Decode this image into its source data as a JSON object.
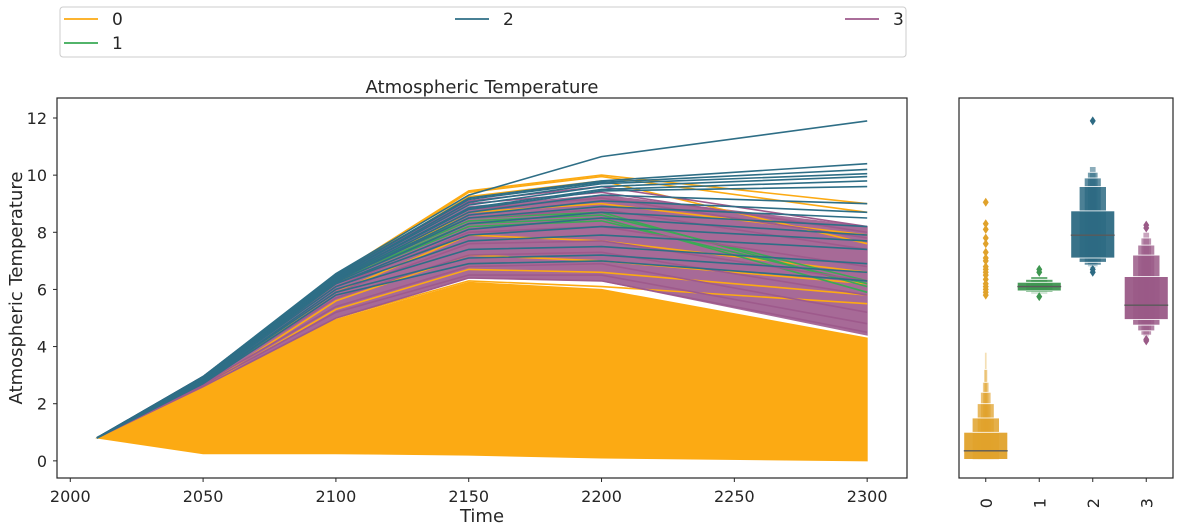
{
  "legend": {
    "placement": "top, above plots",
    "entries": [
      {
        "label": "0",
        "color": "#fcaa13"
      },
      {
        "label": "1",
        "color": "#3aaa55"
      },
      {
        "label": "2",
        "color": "#2e6e86"
      },
      {
        "label": "3",
        "color": "#9e5a8c"
      }
    ]
  },
  "chart_data": [
    {
      "type": "line",
      "title": "Atmospheric Temperature",
      "xlabel": "Time",
      "ylabel": "Atmospheric Temperature",
      "xlim": [
        1995,
        2315
      ],
      "ylim": [
        -0.6,
        12.7
      ],
      "xticks": [
        2000,
        2050,
        2100,
        2150,
        2200,
        2250,
        2300
      ],
      "yticks": [
        0,
        2,
        4,
        6,
        8,
        10,
        12
      ],
      "grid": false,
      "x": [
        2010,
        2050,
        2100,
        2150,
        2200,
        2300
      ],
      "series": [
        {
          "name": "0",
          "color": "#fcaa13",
          "bands": [
            {
              "low": [
                0.8,
                0.25,
                0.25,
                0.2,
                0.1,
                0.0
              ],
              "high": [
                0.8,
                2.6,
                4.95,
                6.25,
                6.0,
                4.3
              ]
            }
          ],
          "lines": [
            [
              0.8,
              2.9,
              6.5,
              9.45,
              10.0,
              9.0
            ],
            [
              0.8,
              2.9,
              6.45,
              9.4,
              9.95,
              8.7
            ],
            [
              0.8,
              2.85,
              6.4,
              9.25,
              9.8,
              7.6
            ],
            [
              0.8,
              2.8,
              6.2,
              8.7,
              9.0,
              7.9
            ],
            [
              0.8,
              2.7,
              5.9,
              7.9,
              7.7,
              6.6
            ],
            [
              0.8,
              2.6,
              5.6,
              7.2,
              7.0,
              6.2
            ],
            [
              0.8,
              2.6,
              5.3,
              6.7,
              6.6,
              5.8
            ],
            [
              0.8,
              2.55,
              5.0,
              6.3,
              6.1,
              5.5
            ]
          ]
        },
        {
          "name": "1",
          "color": "#3aaa55",
          "lines": [
            [
              0.8,
              2.9,
              6.45,
              8.5,
              8.7,
              6.1
            ],
            [
              0.8,
              2.85,
              6.4,
              8.4,
              8.6,
              6.3
            ],
            [
              0.8,
              2.85,
              6.35,
              8.3,
              8.5,
              5.9
            ],
            [
              0.8,
              2.8,
              6.3,
              8.2,
              8.4,
              6.2
            ]
          ]
        },
        {
          "name": "2",
          "color": "#2e6e86",
          "lines": [
            [
              0.8,
              2.95,
              6.55,
              9.3,
              10.65,
              11.9
            ],
            [
              0.8,
              2.95,
              6.5,
              9.2,
              9.8,
              10.4
            ],
            [
              0.8,
              2.95,
              6.5,
              9.15,
              9.75,
              10.2
            ],
            [
              0.8,
              2.9,
              6.45,
              9.05,
              9.7,
              10.05
            ],
            [
              0.8,
              2.9,
              6.45,
              8.95,
              9.6,
              9.95
            ],
            [
              0.8,
              2.9,
              6.4,
              8.85,
              9.5,
              9.8
            ],
            [
              0.8,
              2.9,
              6.4,
              8.8,
              9.45,
              9.6
            ],
            [
              0.8,
              2.9,
              6.35,
              8.7,
              9.3,
              9.0
            ],
            [
              0.8,
              2.85,
              6.3,
              8.6,
              9.1,
              8.7
            ],
            [
              0.8,
              2.85,
              6.3,
              8.5,
              8.9,
              8.5
            ],
            [
              0.8,
              2.85,
              6.25,
              8.3,
              8.7,
              8.2
            ],
            [
              0.8,
              2.8,
              6.2,
              8.1,
              8.5,
              7.9
            ],
            [
              0.8,
              2.8,
              6.2,
              7.9,
              8.2,
              7.7
            ],
            [
              0.8,
              2.8,
              6.1,
              7.7,
              7.9,
              7.4
            ],
            [
              0.8,
              2.75,
              6.0,
              7.4,
              7.5,
              6.9
            ],
            [
              0.8,
              2.75,
              5.9,
              7.1,
              7.2,
              6.6
            ],
            [
              0.8,
              2.7,
              5.8,
              6.9,
              7.0,
              6.3
            ]
          ]
        },
        {
          "name": "3",
          "color": "#9e5a8c",
          "bands": [
            {
              "low": [
                0.8,
                2.6,
                5.0,
                6.4,
                6.3,
                4.4
              ],
              "high": [
                0.8,
                2.95,
                6.5,
                8.9,
                9.3,
                8.2
              ]
            }
          ],
          "lines": [
            [
              0.8,
              2.95,
              6.5,
              9.1,
              9.6,
              8.2
            ],
            [
              0.8,
              2.95,
              6.45,
              9.0,
              9.4,
              8.0
            ],
            [
              0.8,
              2.9,
              6.4,
              8.8,
              9.2,
              7.8
            ],
            [
              0.8,
              2.9,
              6.3,
              8.5,
              8.8,
              7.4
            ],
            [
              0.8,
              2.85,
              6.1,
              8.0,
              8.2,
              6.8
            ],
            [
              0.8,
              2.8,
              5.9,
              7.6,
              7.7,
              6.3
            ],
            [
              0.8,
              2.75,
              5.7,
              7.2,
              7.3,
              5.8
            ],
            [
              0.8,
              2.7,
              5.4,
              6.8,
              6.9,
              5.2
            ],
            [
              0.8,
              2.65,
              5.2,
              6.5,
              6.5,
              4.8
            ],
            [
              0.8,
              2.6,
              5.0,
              6.4,
              6.3,
              4.5
            ]
          ]
        }
      ]
    },
    {
      "type": "boxen",
      "categories": [
        "0",
        "1",
        "2",
        "3"
      ],
      "ylim": [
        -0.6,
        12.7
      ],
      "yticks_shown": false,
      "grid": false,
      "series": [
        {
          "category": "0",
          "color": "#e0a22b",
          "median": 0.35,
          "levels": [
            {
              "low": 0.05,
              "high": 1.0
            },
            {
              "low": 0.02,
              "high": 1.5
            },
            {
              "low": 0.01,
              "high": 2.0
            },
            {
              "low": 0.0,
              "high": 2.4
            },
            {
              "low": 0.0,
              "high": 2.75
            },
            {
              "low": 0.0,
              "high": 3.2
            },
            {
              "low": 0.0,
              "high": 3.8
            }
          ],
          "outliers": [
            5.8,
            5.9,
            6.0,
            6.1,
            6.2,
            6.35,
            6.5,
            6.6,
            6.7,
            6.8,
            7.0,
            7.1,
            7.3,
            7.6,
            7.8,
            8.1,
            8.3,
            9.05
          ]
        },
        {
          "category": "1",
          "color": "#3e9650",
          "median": 6.1,
          "levels": [
            {
              "low": 5.95,
              "high": 6.25
            },
            {
              "low": 5.9,
              "high": 6.35
            },
            {
              "low": 5.85,
              "high": 6.45
            }
          ],
          "outliers": [
            5.75,
            6.6,
            6.7
          ]
        },
        {
          "category": "2",
          "color": "#2d6a83",
          "median": 7.9,
          "levels": [
            {
              "low": 7.1,
              "high": 8.75
            },
            {
              "low": 6.95,
              "high": 9.6
            },
            {
              "low": 6.85,
              "high": 9.9
            },
            {
              "low": 6.8,
              "high": 10.1
            },
            {
              "low": 6.75,
              "high": 10.3
            }
          ],
          "outliers": [
            6.6,
            6.7,
            11.9
          ]
        },
        {
          "category": "3",
          "color": "#9a5a87",
          "median": 5.45,
          "levels": [
            {
              "low": 4.95,
              "high": 6.45
            },
            {
              "low": 4.75,
              "high": 7.2
            },
            {
              "low": 4.55,
              "high": 7.55
            },
            {
              "low": 4.4,
              "high": 7.8
            },
            {
              "low": 4.35,
              "high": 8.0
            }
          ],
          "outliers": [
            4.2,
            4.25,
            8.15,
            8.25
          ]
        }
      ]
    }
  ]
}
